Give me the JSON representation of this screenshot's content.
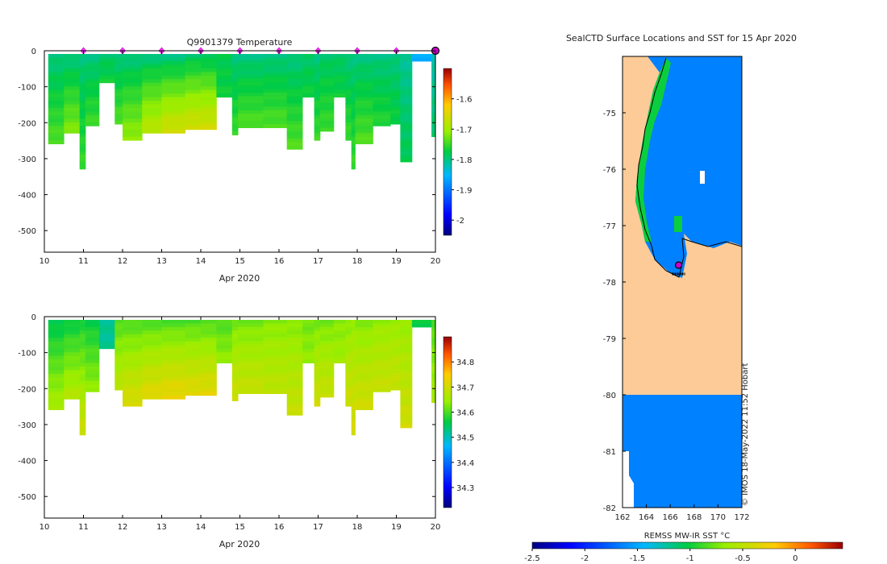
{
  "chart_data": [
    {
      "type": "heatmap",
      "title": "Q9901379  Temperature",
      "xlabel": "Apr 2020",
      "ylabel": "",
      "xlim": [
        10,
        20
      ],
      "ylim": [
        -560,
        0
      ],
      "x_ticks": [
        "10",
        "11",
        "12",
        "13",
        "14",
        "15",
        "16",
        "17",
        "18",
        "19",
        "20"
      ],
      "y_ticks": [
        "0",
        "-100",
        "-200",
        "-300",
        "-400",
        "-500"
      ],
      "colorbar": {
        "min": -2.05,
        "max": -1.5,
        "ticks": [
          "-1.6",
          "-1.7",
          "-1.8",
          "-1.9",
          "-2"
        ]
      },
      "markers_x": [
        11,
        12,
        13,
        14,
        15,
        16,
        17,
        18,
        19
      ],
      "last_marker_x": 20,
      "profiles": [
        {
          "x0": 10.1,
          "x1": 10.5,
          "depth": 250,
          "surface": -1.8,
          "deep": -1.74
        },
        {
          "x0": 10.5,
          "x1": 10.9,
          "depth": 220,
          "surface": -1.8,
          "deep": -1.72
        },
        {
          "x0": 10.9,
          "x1": 11.05,
          "depth": 320,
          "surface": -1.8,
          "deep": -1.75
        },
        {
          "x0": 11.05,
          "x1": 11.4,
          "depth": 200,
          "surface": -1.8,
          "deep": -1.75
        },
        {
          "x0": 11.4,
          "x1": 11.8,
          "depth": 80,
          "surface": -1.79,
          "deep": -1.77
        },
        {
          "x0": 11.8,
          "x1": 12.0,
          "depth": 195,
          "surface": -1.8,
          "deep": -1.74
        },
        {
          "x0": 12.0,
          "x1": 12.5,
          "depth": 240,
          "surface": -1.8,
          "deep": -1.71
        },
        {
          "x0": 12.5,
          "x1": 13.0,
          "depth": 220,
          "surface": -1.8,
          "deep": -1.68
        },
        {
          "x0": 13.0,
          "x1": 13.6,
          "depth": 220,
          "surface": -1.8,
          "deep": -1.66
        },
        {
          "x0": 13.6,
          "x1": 14.0,
          "depth": 210,
          "surface": -1.79,
          "deep": -1.66
        },
        {
          "x0": 14.0,
          "x1": 14.4,
          "depth": 210,
          "surface": -1.79,
          "deep": -1.66
        },
        {
          "x0": 14.4,
          "x1": 14.8,
          "depth": 120,
          "surface": -1.78,
          "deep": -1.77
        },
        {
          "x0": 14.8,
          "x1": 14.95,
          "depth": 225,
          "surface": -1.8,
          "deep": -1.75
        },
        {
          "x0": 14.95,
          "x1": 15.6,
          "depth": 205,
          "surface": -1.8,
          "deep": -1.74
        },
        {
          "x0": 15.6,
          "x1": 16.2,
          "depth": 205,
          "surface": -1.8,
          "deep": -1.74
        },
        {
          "x0": 16.2,
          "x1": 16.6,
          "depth": 265,
          "surface": -1.8,
          "deep": -1.74
        },
        {
          "x0": 16.6,
          "x1": 16.9,
          "depth": 120,
          "surface": -1.79,
          "deep": -1.77
        },
        {
          "x0": 16.9,
          "x1": 17.05,
          "depth": 240,
          "surface": -1.8,
          "deep": -1.75
        },
        {
          "x0": 17.05,
          "x1": 17.4,
          "depth": 215,
          "surface": -1.79,
          "deep": -1.75
        },
        {
          "x0": 17.4,
          "x1": 17.7,
          "depth": 120,
          "surface": -1.79,
          "deep": -1.77
        },
        {
          "x0": 17.7,
          "x1": 17.85,
          "depth": 240,
          "surface": -1.8,
          "deep": -1.75
        },
        {
          "x0": 17.85,
          "x1": 17.95,
          "depth": 320,
          "surface": -1.8,
          "deep": -1.75
        },
        {
          "x0": 17.95,
          "x1": 18.4,
          "depth": 250,
          "surface": -1.8,
          "deep": -1.74
        },
        {
          "x0": 18.4,
          "x1": 18.85,
          "depth": 200,
          "surface": -1.8,
          "deep": -1.76
        },
        {
          "x0": 18.85,
          "x1": 19.1,
          "depth": 195,
          "surface": -1.8,
          "deep": -1.77
        },
        {
          "x0": 19.1,
          "x1": 19.4,
          "depth": 300,
          "surface": -1.81,
          "deep": -1.78
        },
        {
          "x0": 19.4,
          "x1": 19.9,
          "depth": 20,
          "surface": -1.86,
          "deep": -1.86
        },
        {
          "x0": 19.9,
          "x1": 20.1,
          "depth": 230,
          "surface": -1.82,
          "deep": -1.79
        }
      ]
    },
    {
      "type": "heatmap",
      "title": "",
      "xlabel": "Apr 2020",
      "ylabel": "",
      "xlim": [
        10,
        20
      ],
      "ylim": [
        -560,
        0
      ],
      "x_ticks": [
        "10",
        "11",
        "12",
        "13",
        "14",
        "15",
        "16",
        "17",
        "18",
        "19",
        "20"
      ],
      "y_ticks": [
        "0",
        "-100",
        "-200",
        "-300",
        "-400",
        "-500"
      ],
      "colorbar": {
        "min": 34.22,
        "max": 34.9,
        "ticks": [
          "34.8",
          "34.7",
          "34.6",
          "34.5",
          "34.4",
          "34.3"
        ]
      },
      "profiles": [
        {
          "x0": 10.1,
          "x1": 10.5,
          "depth": 250,
          "surface": 34.55,
          "deep": 34.66
        },
        {
          "x0": 10.5,
          "x1": 10.9,
          "depth": 220,
          "surface": 34.56,
          "deep": 34.67
        },
        {
          "x0": 10.9,
          "x1": 11.05,
          "depth": 320,
          "surface": 34.57,
          "deep": 34.7
        },
        {
          "x0": 11.05,
          "x1": 11.4,
          "depth": 200,
          "surface": 34.56,
          "deep": 34.64
        },
        {
          "x0": 11.4,
          "x1": 11.8,
          "depth": 80,
          "surface": 34.52,
          "deep": 34.52
        },
        {
          "x0": 11.8,
          "x1": 12.0,
          "depth": 195,
          "surface": 34.6,
          "deep": 34.68
        },
        {
          "x0": 12.0,
          "x1": 12.5,
          "depth": 240,
          "surface": 34.6,
          "deep": 34.71
        },
        {
          "x0": 12.5,
          "x1": 13.0,
          "depth": 220,
          "surface": 34.6,
          "deep": 34.72
        },
        {
          "x0": 13.0,
          "x1": 13.6,
          "depth": 220,
          "surface": 34.6,
          "deep": 34.73
        },
        {
          "x0": 13.6,
          "x1": 14.0,
          "depth": 210,
          "surface": 34.6,
          "deep": 34.72
        },
        {
          "x0": 14.0,
          "x1": 14.4,
          "depth": 210,
          "surface": 34.6,
          "deep": 34.72
        },
        {
          "x0": 14.4,
          "x1": 14.8,
          "depth": 120,
          "surface": 34.6,
          "deep": 34.64
        },
        {
          "x0": 14.8,
          "x1": 14.95,
          "depth": 225,
          "surface": 34.62,
          "deep": 34.7
        },
        {
          "x0": 14.95,
          "x1": 15.6,
          "depth": 205,
          "surface": 34.62,
          "deep": 34.69
        },
        {
          "x0": 15.6,
          "x1": 16.2,
          "depth": 205,
          "surface": 34.63,
          "deep": 34.68
        },
        {
          "x0": 16.2,
          "x1": 16.6,
          "depth": 265,
          "surface": 34.63,
          "deep": 34.69
        },
        {
          "x0": 16.6,
          "x1": 16.9,
          "depth": 120,
          "surface": 34.62,
          "deep": 34.64
        },
        {
          "x0": 16.9,
          "x1": 17.05,
          "depth": 240,
          "surface": 34.62,
          "deep": 34.7
        },
        {
          "x0": 17.05,
          "x1": 17.4,
          "depth": 215,
          "surface": 34.62,
          "deep": 34.69
        },
        {
          "x0": 17.4,
          "x1": 17.7,
          "depth": 120,
          "surface": 34.63,
          "deep": 34.65
        },
        {
          "x0": 17.7,
          "x1": 17.85,
          "depth": 240,
          "surface": 34.63,
          "deep": 34.7
        },
        {
          "x0": 17.85,
          "x1": 17.95,
          "depth": 320,
          "surface": 34.64,
          "deep": 34.71
        },
        {
          "x0": 17.95,
          "x1": 18.4,
          "depth": 250,
          "surface": 34.63,
          "deep": 34.7
        },
        {
          "x0": 18.4,
          "x1": 18.85,
          "depth": 200,
          "surface": 34.64,
          "deep": 34.69
        },
        {
          "x0": 18.85,
          "x1": 19.1,
          "depth": 195,
          "surface": 34.64,
          "deep": 34.69
        },
        {
          "x0": 19.1,
          "x1": 19.4,
          "depth": 300,
          "surface": 34.64,
          "deep": 34.7
        },
        {
          "x0": 19.4,
          "x1": 19.9,
          "depth": 20,
          "surface": 34.56,
          "deep": 34.56
        },
        {
          "x0": 19.9,
          "x1": 20.1,
          "depth": 230,
          "surface": 34.6,
          "deep": 34.66
        }
      ]
    },
    {
      "type": "heatmap",
      "title": "SealCTD Surface Locations and SST for 15 Apr 2020",
      "xlabel": "",
      "ylabel": "",
      "xlim": [
        162,
        172
      ],
      "ylim": [
        -82,
        -74
      ],
      "x_ticks": [
        "162",
        "164",
        "166",
        "168",
        "170",
        "172"
      ],
      "y_ticks": [
        "-75",
        "-76",
        "-77",
        "-78",
        "-79",
        "-80",
        "-81",
        "-82"
      ],
      "colorbar_label": "REMSS MW-IR SST °C",
      "colorbar": {
        "min": -2.5,
        "max": 0.45,
        "ticks": [
          "-2.5",
          "-2",
          "-1.5",
          "-1",
          "-0.5",
          "0"
        ]
      },
      "credit": "© IMOS 18-May-2022 11:52 Hobart",
      "sea_sst": -1.65,
      "coast_sst": -1.0,
      "land_color": "#fccb98",
      "marker_color": "#cc00cc",
      "station_lon": 166.7,
      "station_lat": -77.7
    }
  ]
}
